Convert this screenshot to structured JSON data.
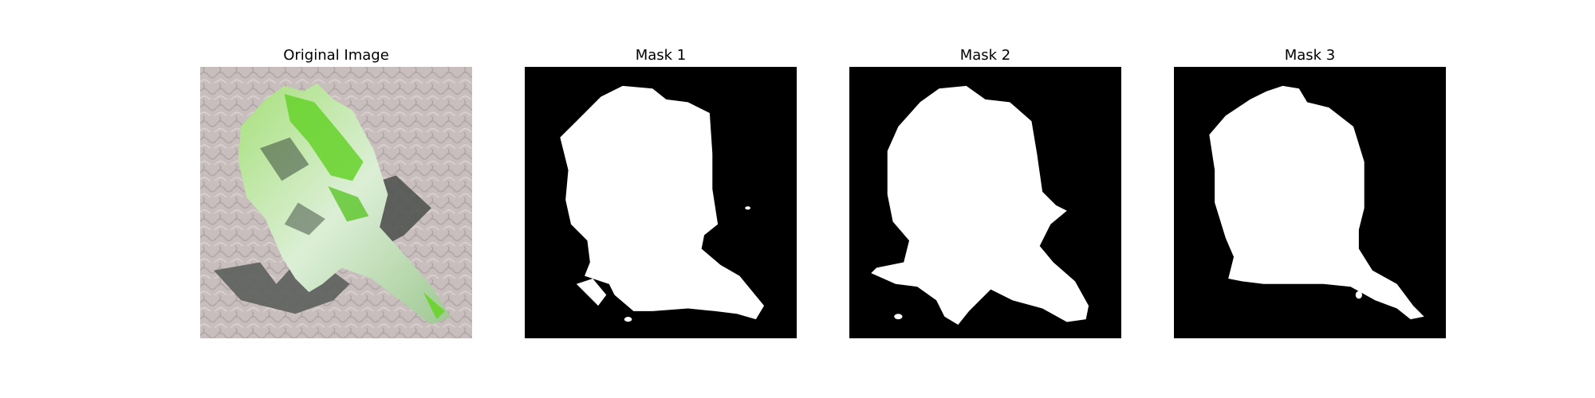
{
  "figure": {
    "panels": [
      {
        "title": "Original Image",
        "kind": "photo"
      },
      {
        "title": "Mask 1",
        "kind": "mask"
      },
      {
        "title": "Mask 2",
        "kind": "mask"
      },
      {
        "title": "Mask 3",
        "kind": "mask"
      }
    ]
  },
  "colors": {
    "mask_background": "#000000",
    "mask_foreground": "#ffffff",
    "photo_background": "#c9bebe",
    "object_green": "#66d22a",
    "object_light": "#dfeedd",
    "shadow": "#4a4f4c"
  }
}
